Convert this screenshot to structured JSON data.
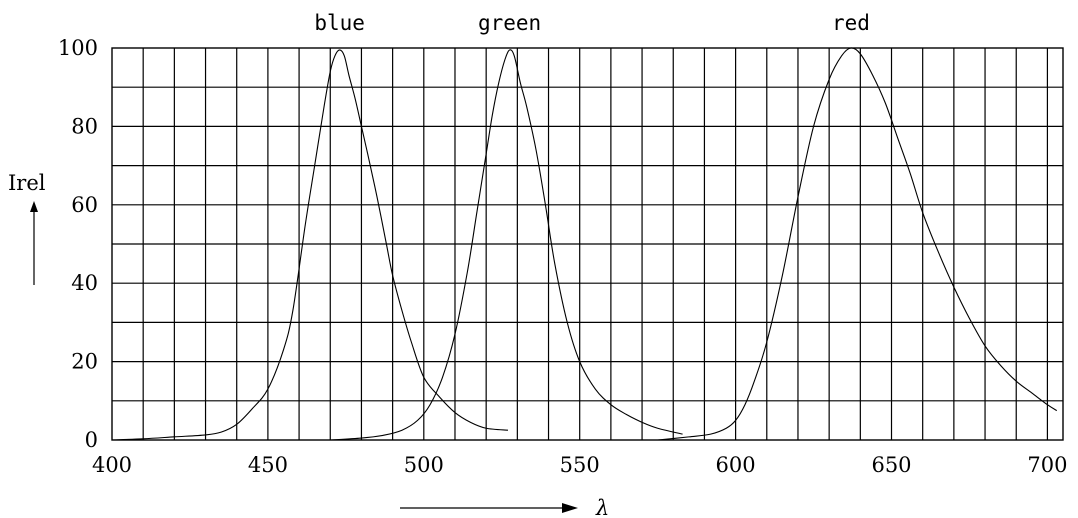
{
  "chart_data": {
    "type": "line",
    "title": "",
    "xlabel": "λ",
    "ylabel": "Irel",
    "xlim": [
      400,
      705
    ],
    "ylim": [
      0,
      100
    ],
    "x_ticks": [
      "400",
      "450",
      "500",
      "550",
      "600",
      "650",
      "700"
    ],
    "y_ticks": [
      "0",
      "20",
      "40",
      "60",
      "80",
      "100"
    ],
    "grid": true,
    "series": [
      {
        "name": "blue",
        "x": [
          400,
          410,
          420,
          430,
          435,
          440,
          445,
          450,
          455,
          458,
          462,
          465,
          468,
          470,
          471.5,
          473,
          474.5,
          476,
          478,
          480,
          482,
          485,
          488,
          490,
          493,
          496,
          500,
          505,
          510,
          515,
          520,
          527
        ],
        "y": [
          0,
          0.3,
          0.8,
          1.3,
          2,
          4,
          8,
          13,
          23,
          33,
          55,
          70,
          85,
          94,
          98,
          99.5,
          98,
          93,
          87,
          80,
          73,
          62,
          50,
          42,
          33,
          25,
          16,
          11,
          7,
          4.5,
          3,
          2.5
        ]
      },
      {
        "name": "green",
        "x": [
          470,
          480,
          487,
          493,
          498,
          502,
          506,
          510,
          514,
          517,
          520,
          522,
          524,
          526,
          527.5,
          529,
          531,
          533,
          536,
          539,
          542,
          546,
          550,
          555,
          560,
          565,
          570,
          575,
          583
        ],
        "y": [
          0,
          0.5,
          1.2,
          2.5,
          5,
          9,
          16,
          27,
          43,
          58,
          73,
          83,
          91,
          97,
          99.5,
          98,
          91,
          85,
          74,
          60,
          45,
          30,
          20,
          13,
          9,
          6.5,
          4.5,
          3,
          1.5
        ]
      },
      {
        "name": "red",
        "x": [
          575,
          585,
          592,
          597,
          600,
          603,
          606,
          610,
          615,
          620,
          625,
          630,
          634,
          637,
          640,
          644,
          648,
          652,
          656,
          660,
          665,
          670,
          675,
          680,
          685,
          690,
          695,
          700,
          703
        ],
        "y": [
          0,
          0.8,
          1.5,
          3,
          5,
          9,
          15,
          25,
          42,
          62,
          80,
          92,
          98,
          100,
          98.5,
          93,
          86,
          77,
          68,
          58,
          48,
          39,
          31,
          24,
          19,
          15,
          12,
          9,
          7.5
        ]
      }
    ]
  }
}
